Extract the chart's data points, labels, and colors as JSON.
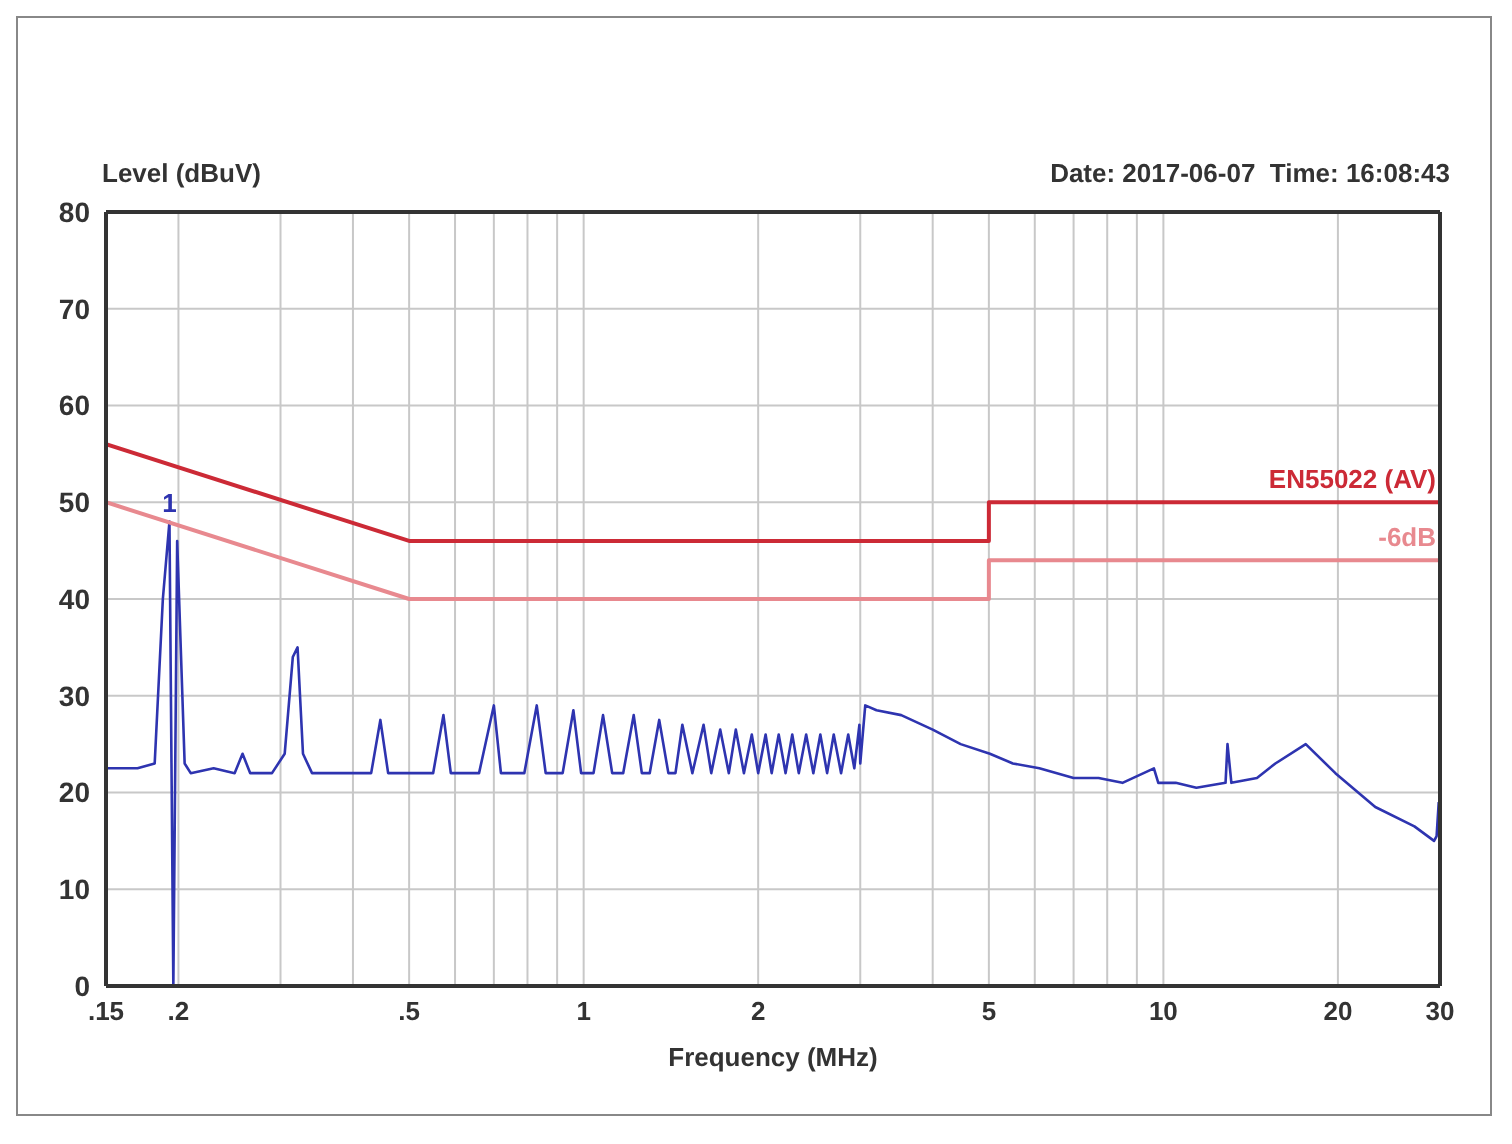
{
  "chart_data": {
    "type": "line",
    "xlabel": "Frequency (MHz)",
    "ylabel": "Level (dBuV)",
    "log": "x",
    "grid": true,
    "legend": false,
    "marker": "none",
    "line_style": "solid",
    "xlim": [
      0.15,
      30
    ],
    "ylim": [
      0,
      80
    ],
    "xticks": [
      {
        "value": 0.15,
        "label": ".15"
      },
      {
        "value": 0.2,
        "label": ".2"
      },
      {
        "value": 0.3,
        "label": null
      },
      {
        "value": 0.4,
        "label": null
      },
      {
        "value": 0.5,
        "label": ".5"
      },
      {
        "value": 0.6,
        "label": null
      },
      {
        "value": 0.7,
        "label": null
      },
      {
        "value": 0.8,
        "label": null
      },
      {
        "value": 0.9,
        "label": null
      },
      1,
      2,
      {
        "value": 3,
        "label": null
      },
      {
        "value": 4,
        "label": null
      },
      5,
      {
        "value": 6,
        "label": null
      },
      {
        "value": 7,
        "label": null
      },
      {
        "value": 8,
        "label": null
      },
      {
        "value": 9,
        "label": null
      },
      10,
      20,
      30
    ],
    "yticks": [
      0,
      10,
      20,
      30,
      40,
      50,
      60,
      70,
      80
    ],
    "annotations": [
      "Date: 2017-06-07  Time: 16:08:43",
      {
        "text": "1",
        "x": 0.193,
        "y": 48
      }
    ],
    "series": [
      {
        "color": "#2e34b0",
        "x": [
          0.15,
          0.17,
          0.182,
          0.188,
          0.193,
          0.196,
          0.199,
          0.205,
          0.21,
          0.23,
          0.25,
          0.258,
          0.266,
          0.29,
          0.305,
          0.315,
          0.321,
          0.328,
          0.34,
          0.4,
          0.43,
          0.446,
          0.46,
          0.5,
          0.55,
          0.573,
          0.59,
          0.66,
          0.7,
          0.72,
          0.79,
          0.83,
          0.86,
          0.92,
          0.96,
          0.99,
          1.04,
          1.08,
          1.12,
          1.17,
          1.22,
          1.26,
          1.3,
          1.35,
          1.4,
          1.44,
          1.48,
          1.54,
          1.61,
          1.66,
          1.72,
          1.78,
          1.83,
          1.89,
          1.95,
          2.0,
          2.06,
          2.11,
          2.17,
          2.23,
          2.29,
          2.35,
          2.42,
          2.49,
          2.56,
          2.63,
          2.7,
          2.78,
          2.86,
          2.93,
          2.99,
          3.0,
          3.06,
          3.2,
          3.53,
          4.0,
          4.47,
          5.02,
          5.5,
          6.11,
          7.0,
          7.73,
          8.5,
          9.63,
          9.8,
          10.5,
          11.4,
          12.8,
          12.9,
          13.1,
          14.5,
          15.6,
          17.6,
          19.8,
          23.2,
          27.1,
          29.3,
          29.6,
          29.85
        ],
        "values": [
          22.5,
          22.5,
          23,
          40,
          48,
          0,
          46,
          23,
          22,
          22.5,
          22,
          24,
          22,
          22,
          24,
          34,
          35,
          24,
          22,
          22,
          22,
          27.5,
          22,
          22,
          22,
          28,
          22,
          22,
          29,
          22,
          22,
          29,
          22,
          22,
          28.5,
          22,
          22,
          28,
          22,
          22,
          28,
          22,
          22,
          27.5,
          22,
          22,
          27,
          22,
          27,
          22,
          26.5,
          22,
          26.5,
          22,
          26,
          22,
          26,
          22,
          26,
          22,
          26,
          22,
          26,
          22,
          26,
          22,
          26,
          22,
          26,
          22.5,
          27,
          23,
          29,
          28.5,
          28,
          26.5,
          25,
          24,
          23,
          22.5,
          21.5,
          21.5,
          21,
          22.5,
          21,
          21,
          20.5,
          21,
          25,
          21,
          21.5,
          23,
          25,
          22,
          18.5,
          16.5,
          15,
          15.5,
          19
        ]
      },
      {
        "name": "EN55022 (AV)",
        "color": "#cc2a36",
        "x": [
          0.15,
          0.5,
          5,
          5,
          30
        ],
        "values": [
          56,
          46,
          46,
          50,
          50
        ]
      },
      {
        "name": "-6dB",
        "color": "#e8898f",
        "x": [
          0.15,
          0.5,
          5,
          5,
          30
        ],
        "values": [
          50,
          40,
          40,
          44,
          44
        ]
      }
    ]
  }
}
